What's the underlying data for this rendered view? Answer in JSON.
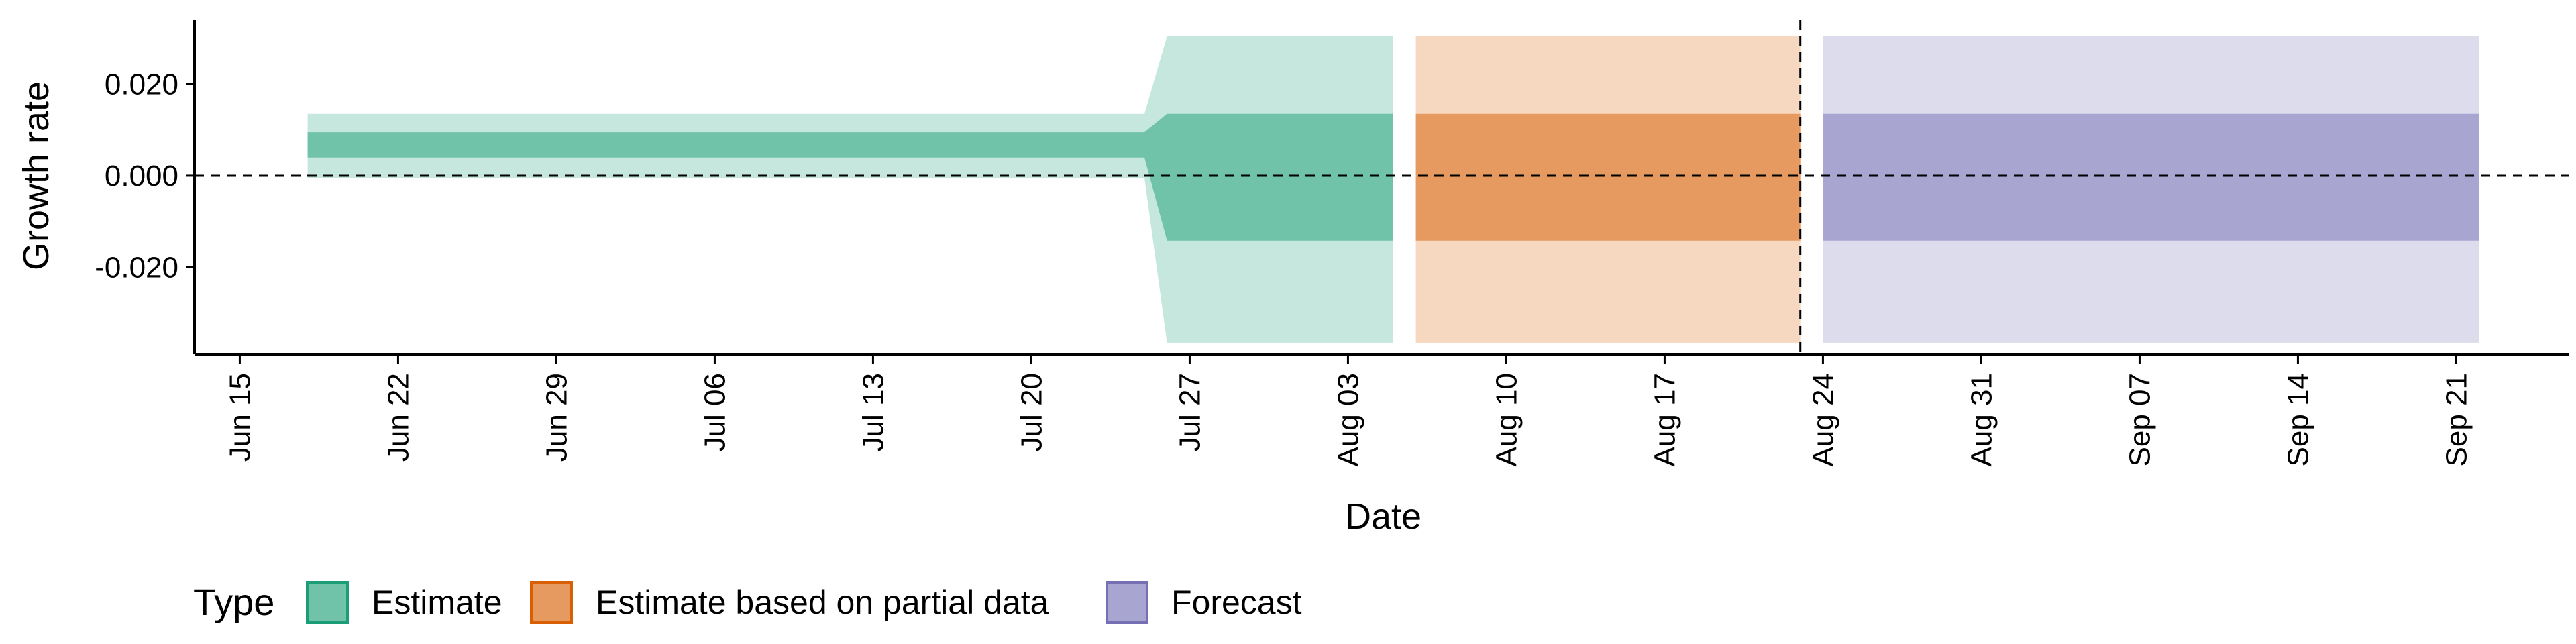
{
  "chart_data": {
    "type": "area",
    "title": "",
    "xlabel": "Date",
    "ylabel": "Growth rate",
    "x_ticks": [
      "Jun 15",
      "Jun 22",
      "Jun 29",
      "Jul 06",
      "Jul 13",
      "Jul 20",
      "Jul 27",
      "Aug 03",
      "Aug 10",
      "Aug 17",
      "Aug 24",
      "Aug 31",
      "Sep 07",
      "Sep 14",
      "Sep 21"
    ],
    "y_ticks": [
      "0.020",
      "0.000",
      "-0.020"
    ],
    "y_tick_values": [
      0.02,
      0.0,
      -0.02
    ],
    "xlim": [
      "2020-06-13",
      "2020-09-26"
    ],
    "ylim": [
      -0.039,
      0.034
    ],
    "reference_lines": {
      "horizontal_y": 0.0,
      "vertical_x": "2020-08-23"
    },
    "legend_title": "Type",
    "legend_position": "bottom",
    "series": [
      {
        "name": "Estimate",
        "color": "#1b9e77",
        "x": [
          "2020-06-18",
          "2020-07-25",
          "2020-07-26",
          "2020-08-05"
        ],
        "upper_90": [
          0.0135,
          0.0135,
          0.0305,
          0.0305
        ],
        "lower_90": [
          -0.0005,
          -0.0005,
          -0.0365,
          -0.0365
        ],
        "upper_50": [
          0.0095,
          0.0095,
          0.0135,
          0.0135
        ],
        "lower_50": [
          0.004,
          0.004,
          -0.0142,
          -0.0142
        ]
      },
      {
        "name": "Estimate based on partial data",
        "color": "#d95f02",
        "x": [
          "2020-08-06",
          "2020-08-23"
        ],
        "upper_90": [
          0.0305,
          0.0305
        ],
        "lower_90": [
          -0.0365,
          -0.0365
        ],
        "upper_50": [
          0.0135,
          0.0135
        ],
        "lower_50": [
          -0.0142,
          -0.0142
        ]
      },
      {
        "name": "Forecast",
        "color": "#7570b3",
        "x": [
          "2020-08-24",
          "2020-09-22"
        ],
        "upper_90": [
          0.0305,
          0.0305
        ],
        "lower_90": [
          -0.0365,
          -0.0365
        ],
        "upper_50": [
          0.0135,
          0.0135
        ],
        "lower_50": [
          -0.0142,
          -0.0142
        ]
      }
    ],
    "band_colors": {
      "Estimate": {
        "outer": "#c5e7dd",
        "inner": "#70c2a9"
      },
      "Estimate based on partial data": {
        "outer": "#f6d8c0",
        "inner": "#e69a60"
      },
      "Forecast": {
        "outer": "#dddcec",
        "inner": "#a8a5d1"
      }
    },
    "legend_fill": {
      "Estimate": "#70c2a9",
      "Estimate based on partial data": "#e69a60",
      "Forecast": "#a8a5d1"
    }
  }
}
